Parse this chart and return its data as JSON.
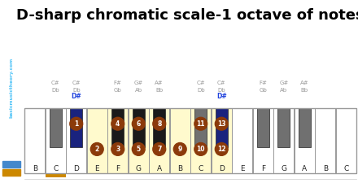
{
  "title": "D-sharp chromatic scale-1 octave of notes",
  "title_fontsize": 13,
  "bg_color": "#ffffff",
  "sidebar_bg": "#111122",
  "sidebar_text": "basicmusictheory.com",
  "sidebar_text_color": "#4fc3f7",
  "sidebar_orange": "#cc8800",
  "sidebar_blue": "#4488cc",
  "white_key_default": "#ffffff",
  "white_key_highlight": "#fffacd",
  "black_key_gray": "#707070",
  "black_key_scale": "#1a1a1a",
  "black_key_blue": "#1a237e",
  "note_circle": "#8B3A0A",
  "note_text": "#ffffff",
  "border_color": "#aaaaaa",
  "label_gray": "#999999",
  "label_blue": "#2244dd",
  "orange_bar": "#cc8800",
  "white_names": [
    "B",
    "C",
    "D",
    "E",
    "F",
    "G",
    "A",
    "B",
    "C",
    "D",
    "E",
    "F",
    "G",
    "A",
    "B",
    "C"
  ],
  "yellow_white_indices": [
    3,
    4,
    5,
    6,
    7,
    8,
    9
  ],
  "black_pos_rel": [
    1.5,
    2.5,
    4.5,
    5.5,
    6.5,
    8.5,
    9.5,
    11.5,
    12.5,
    13.5
  ],
  "black_colors_key": [
    "gray",
    "blue",
    "scale",
    "scale",
    "scale",
    "gray",
    "blue",
    "gray",
    "gray",
    "gray"
  ],
  "black_r1": [
    "C#",
    "C#",
    "F#",
    "G#",
    "A#",
    "C#",
    "C#",
    "F#",
    "G#",
    "A#"
  ],
  "black_r2": [
    "Db",
    "Db",
    "Gb",
    "Ab",
    "Bb",
    "Db",
    "Db",
    "Gb",
    "Ab",
    "Bb"
  ],
  "black_r3": [
    "",
    "D#",
    "",
    "",
    "",
    "",
    "D#",
    "",
    "",
    ""
  ],
  "black_circles": {
    "1": "1",
    "2": "4",
    "3": "6",
    "4": "8",
    "5": "11",
    "6": "13"
  },
  "white_circles": {
    "3": "2",
    "4": "3",
    "5": "5",
    "6": "7",
    "7": "9",
    "8": "10",
    "9": "12"
  },
  "orange_underline_idx": 1
}
